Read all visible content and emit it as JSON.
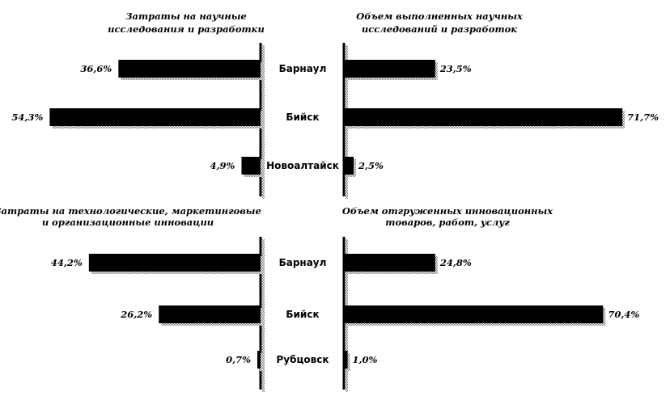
{
  "chart_data": [
    {
      "type": "bar",
      "orientation": "horizontal",
      "direction": "left",
      "title": [
        "Затраты на научные",
        "исследования и разработки"
      ],
      "categories": [
        "Барнаул",
        "Бийск",
        "Новоалтайск"
      ],
      "values": [
        36.6,
        54.3,
        4.9
      ],
      "value_labels": [
        "36,6%",
        "54,3%",
        "4,9%"
      ],
      "unit": "%"
    },
    {
      "type": "bar",
      "orientation": "horizontal",
      "direction": "right",
      "title": [
        "Объем выполненных научных",
        "исследований и разработок"
      ],
      "categories": [
        "Барнаул",
        "Бийск",
        "Новоалтайск"
      ],
      "values": [
        23.5,
        71.7,
        2.5
      ],
      "value_labels": [
        "23,5%",
        "71,7%",
        "2,5%"
      ],
      "unit": "%"
    },
    {
      "type": "bar",
      "orientation": "horizontal",
      "direction": "left",
      "title": [
        "Затраты на технологические, маркетинговые",
        "и организационные инновации"
      ],
      "categories": [
        "Барнаул",
        "Бийск",
        "Рубцовск"
      ],
      "values": [
        44.2,
        26.2,
        0.7
      ],
      "value_labels": [
        "44,2%",
        "26,2%",
        "0,7%"
      ],
      "unit": "%"
    },
    {
      "type": "bar",
      "orientation": "horizontal",
      "direction": "right",
      "title": [
        "Объем отгруженных  инновационных",
        "товаров, работ, услуг"
      ],
      "categories": [
        "Барнаул",
        "Бийск",
        "Рубцовск"
      ],
      "values": [
        24.8,
        70.4,
        1.0
      ],
      "value_labels": [
        "24,8%",
        "70,4%",
        "1,0%"
      ],
      "unit": "%"
    }
  ],
  "colors": {
    "bar": "#000000",
    "shadow": "#9a9a9a",
    "background": "#ffffff"
  }
}
